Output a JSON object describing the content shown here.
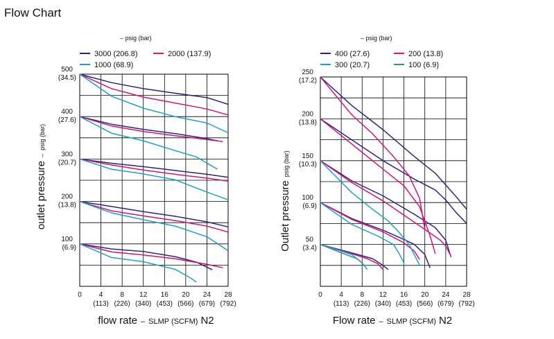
{
  "page": {
    "title": "Flow Chart"
  },
  "colors": {
    "s1": "#2b2480",
    "s2": "#d4137a",
    "s3": "#1aa0cf",
    "s4": "#2a8fa0",
    "grid": "#000000"
  },
  "chart_data": [
    {
      "type": "line",
      "legend_title": "– psig (bar)",
      "xlabel_main": "flow rate",
      "xlabel_sep": "–",
      "xlabel_units": "SLMP (SCFM)",
      "xlabel_gas": "N2",
      "ylabel_main": "outlet pressure",
      "ylabel_sep": "–",
      "ylabel_units": "psig (bar)",
      "xlim": [
        0,
        28
      ],
      "ylim": [
        0,
        500
      ],
      "x_ticks": [
        {
          "v": 0,
          "label": "0",
          "sub": ""
        },
        {
          "v": 4,
          "label": "4",
          "sub": "(113)"
        },
        {
          "v": 8,
          "label": "8",
          "sub": "(226)"
        },
        {
          "v": 12,
          "label": "12",
          "sub": "(340)"
        },
        {
          "v": 16,
          "label": "16",
          "sub": "(453)"
        },
        {
          "v": 20,
          "label": "20",
          "sub": "(566)"
        },
        {
          "v": 24,
          "label": "24",
          "sub": "(679)"
        },
        {
          "v": 28,
          "label": "28",
          "sub": "(792)"
        }
      ],
      "y_ticks": [
        {
          "v": 500,
          "label": "500",
          "sub": "(34.5)"
        },
        {
          "v": 400,
          "label": "400",
          "sub": "(27.6)"
        },
        {
          "v": 300,
          "label": "300",
          "sub": "(20.7)"
        },
        {
          "v": 200,
          "label": "200",
          "sub": "(13.8)"
        },
        {
          "v": 100,
          "label": "100",
          "sub": "(6.9)"
        }
      ],
      "grid_y_step": 50,
      "legend": [
        "3000 (206.8)",
        "2000 (137.9)",
        "1000 (68.9)"
      ],
      "series": [
        {
          "name": "3000 (206.8)",
          "color_key": "s1",
          "curves": [
            [
              [
                0,
                500
              ],
              [
                6,
                480
              ],
              [
                12,
                466
              ],
              [
                18,
                455
              ],
              [
                24,
                445
              ],
              [
                28,
                429
              ]
            ],
            [
              [
                0,
                400
              ],
              [
                6,
                382
              ],
              [
                12,
                370
              ],
              [
                18,
                360
              ],
              [
                24,
                348
              ],
              [
                26,
                343
              ]
            ],
            [
              [
                0,
                300
              ],
              [
                6,
                290
              ],
              [
                12,
                282
              ],
              [
                18,
                273
              ],
              [
                24,
                264
              ],
              [
                28,
                257
              ]
            ],
            [
              [
                0,
                200
              ],
              [
                6,
                188
              ],
              [
                12,
                176
              ],
              [
                18,
                165
              ],
              [
                24,
                152
              ],
              [
                28,
                140
              ]
            ],
            [
              [
                0,
                100
              ],
              [
                6,
                88
              ],
              [
                12,
                82
              ],
              [
                18,
                70
              ],
              [
                22,
                57
              ],
              [
                25,
                39
              ]
            ]
          ]
        },
        {
          "name": "2000 (137.9)",
          "color_key": "s2",
          "curves": [
            [
              [
                0,
                500
              ],
              [
                6,
                466
              ],
              [
                12,
                446
              ],
              [
                18,
                432
              ],
              [
                24,
                418
              ],
              [
                28,
                404
              ]
            ],
            [
              [
                0,
                400
              ],
              [
                6,
                378
              ],
              [
                12,
                365
              ],
              [
                18,
                355
              ],
              [
                24,
                346
              ],
              [
                27,
                341
              ]
            ],
            [
              [
                0,
                300
              ],
              [
                6,
                286
              ],
              [
                12,
                274
              ],
              [
                18,
                264
              ],
              [
                24,
                255
              ],
              [
                28,
                248
              ]
            ],
            [
              [
                0,
                200
              ],
              [
                6,
                178
              ],
              [
                12,
                166
              ],
              [
                18,
                155
              ],
              [
                24,
                142
              ],
              [
                28,
                128
              ]
            ],
            [
              [
                0,
                100
              ],
              [
                6,
                81
              ],
              [
                12,
                74
              ],
              [
                18,
                65
              ],
              [
                24,
                52
              ],
              [
                27,
                44
              ]
            ]
          ]
        },
        {
          "name": "1000 (68.9)",
          "color_key": "s3",
          "curves": [
            [
              [
                0,
                500
              ],
              [
                6,
                448
              ],
              [
                12,
                420
              ],
              [
                18,
                400
              ],
              [
                24,
                385
              ],
              [
                28,
                362
              ]
            ],
            [
              [
                0,
                400
              ],
              [
                6,
                361
              ],
              [
                12,
                343
              ],
              [
                18,
                320
              ],
              [
                22,
                305
              ],
              [
                26,
                276
              ]
            ],
            [
              [
                0,
                300
              ],
              [
                6,
                276
              ],
              [
                12,
                265
              ],
              [
                18,
                251
              ],
              [
                24,
                222
              ],
              [
                28,
                204
              ]
            ],
            [
              [
                0,
                200
              ],
              [
                6,
                173
              ],
              [
                12,
                157
              ],
              [
                18,
                142
              ],
              [
                24,
                117
              ],
              [
                28,
                84
              ]
            ],
            [
              [
                0,
                100
              ],
              [
                6,
                68
              ],
              [
                12,
                58
              ],
              [
                18,
                40
              ],
              [
                21,
                19
              ],
              [
                22,
                10
              ]
            ]
          ]
        }
      ]
    },
    {
      "type": "line",
      "legend_title": "– psig (bar)",
      "xlabel_main": "Flow rate",
      "xlabel_sep": "–",
      "xlabel_units": "SLMP (SCFM)",
      "xlabel_gas": "N2",
      "ylabel_main": "Outlet pressure",
      "ylabel_sep": "",
      "ylabel_units": "psig (bar)",
      "xlim": [
        0,
        28
      ],
      "ylim": [
        0,
        250
      ],
      "x_ticks": [
        {
          "v": 0,
          "label": "0",
          "sub": ""
        },
        {
          "v": 4,
          "label": "4",
          "sub": "(113)"
        },
        {
          "v": 8,
          "label": "8",
          "sub": "(226)"
        },
        {
          "v": 12,
          "label": "12",
          "sub": "(340)"
        },
        {
          "v": 16,
          "label": "16",
          "sub": "(453)"
        },
        {
          "v": 20,
          "label": "20",
          "sub": "(566)"
        },
        {
          "v": 24,
          "label": "24",
          "sub": "(679)"
        },
        {
          "v": 28,
          "label": "28",
          "sub": "(792)"
        }
      ],
      "y_ticks": [
        {
          "v": 250,
          "label": "250",
          "sub": "(17.2)"
        },
        {
          "v": 200,
          "label": "200",
          "sub": "(13.8)"
        },
        {
          "v": 150,
          "label": "150",
          "sub": "(10.3)"
        },
        {
          "v": 100,
          "label": "100",
          "sub": "(6.9)"
        },
        {
          "v": 50,
          "label": "50",
          "sub": "(3.4)"
        }
      ],
      "grid_y_step": 25,
      "legend": [
        "400 (27.6)",
        "200 (13.8)",
        "300 (20.7)",
        "100 (6.9)"
      ],
      "series": [
        {
          "name": "400 (27.6)",
          "color_key": "s1",
          "curves": [
            [
              [
                0,
                250
              ],
              [
                6,
                216
              ],
              [
                12,
                187
              ],
              [
                18,
                155
              ],
              [
                22,
                135
              ],
              [
                26,
                107
              ],
              [
                28,
                92
              ]
            ],
            [
              [
                0,
                200
              ],
              [
                6,
                175
              ],
              [
                12,
                150
              ],
              [
                18,
                128
              ],
              [
                22,
                115
              ],
              [
                24,
                103
              ],
              [
                26,
                88
              ],
              [
                28,
                75
              ]
            ],
            [
              [
                0,
                150
              ],
              [
                6,
                126
              ],
              [
                12,
                108
              ],
              [
                18,
                86
              ],
              [
                22,
                70
              ],
              [
                24,
                55
              ],
              [
                25,
                35
              ]
            ],
            [
              [
                0,
                100
              ],
              [
                6,
                81
              ],
              [
                12,
                67
              ],
              [
                16,
                56
              ],
              [
                18,
                50
              ],
              [
                20,
                38
              ],
              [
                21,
                22
              ]
            ],
            [
              [
                0,
                50
              ],
              [
                6,
                40
              ],
              [
                10,
                33
              ],
              [
                12,
                25
              ],
              [
                13,
                20
              ]
            ]
          ]
        },
        {
          "name": "200 (13.8)",
          "color_key": "s2",
          "curves": [
            [
              [
                0,
                250
              ],
              [
                6,
                205
              ],
              [
                10,
                182
              ],
              [
                14,
                155
              ],
              [
                17,
                132
              ],
              [
                19,
                105
              ],
              [
                20,
                68
              ]
            ],
            [
              [
                0,
                200
              ],
              [
                6,
                170
              ],
              [
                12,
                140
              ],
              [
                16,
                120
              ],
              [
                19,
                95
              ],
              [
                21,
                60
              ],
              [
                22,
                39
              ]
            ],
            [
              [
                0,
                150
              ],
              [
                6,
                124
              ],
              [
                12,
                102
              ],
              [
                16,
                85
              ],
              [
                20,
                68
              ],
              [
                23,
                55
              ],
              [
                24,
                48
              ],
              [
                25,
                36
              ]
            ],
            [
              [
                0,
                100
              ],
              [
                6,
                80
              ],
              [
                12,
                65
              ],
              [
                16,
                52
              ],
              [
                18,
                42
              ],
              [
                19,
                32
              ]
            ],
            [
              [
                0,
                50
              ],
              [
                6,
                39
              ],
              [
                9,
                33
              ],
              [
                11,
                27
              ],
              [
                12,
                20
              ]
            ]
          ]
        },
        {
          "name": "300 (20.7)",
          "color_key": "s3",
          "curves": [
            [
              [
                0,
                150
              ],
              [
                6,
                112
              ],
              [
                10,
                92
              ],
              [
                13,
                78
              ],
              [
                15,
                65
              ],
              [
                17,
                50
              ],
              [
                19,
                25
              ]
            ],
            [
              [
                0,
                100
              ],
              [
                6,
                74
              ],
              [
                11,
                60
              ],
              [
                14,
                50
              ],
              [
                15,
                40
              ],
              [
                16,
                28
              ],
              [
                16,
                25
              ]
            ],
            [
              [
                0,
                50
              ],
              [
                6,
                38
              ],
              [
                8,
                28
              ],
              [
                9,
                20
              ]
            ]
          ]
        },
        {
          "name": "100 (6.9)",
          "color_key": "s4",
          "curves": [
            [
              [
                0,
                50
              ],
              [
                4,
                40
              ],
              [
                7,
                33
              ],
              [
                8,
                28
              ],
              [
                8,
                21
              ]
            ]
          ]
        }
      ]
    }
  ]
}
